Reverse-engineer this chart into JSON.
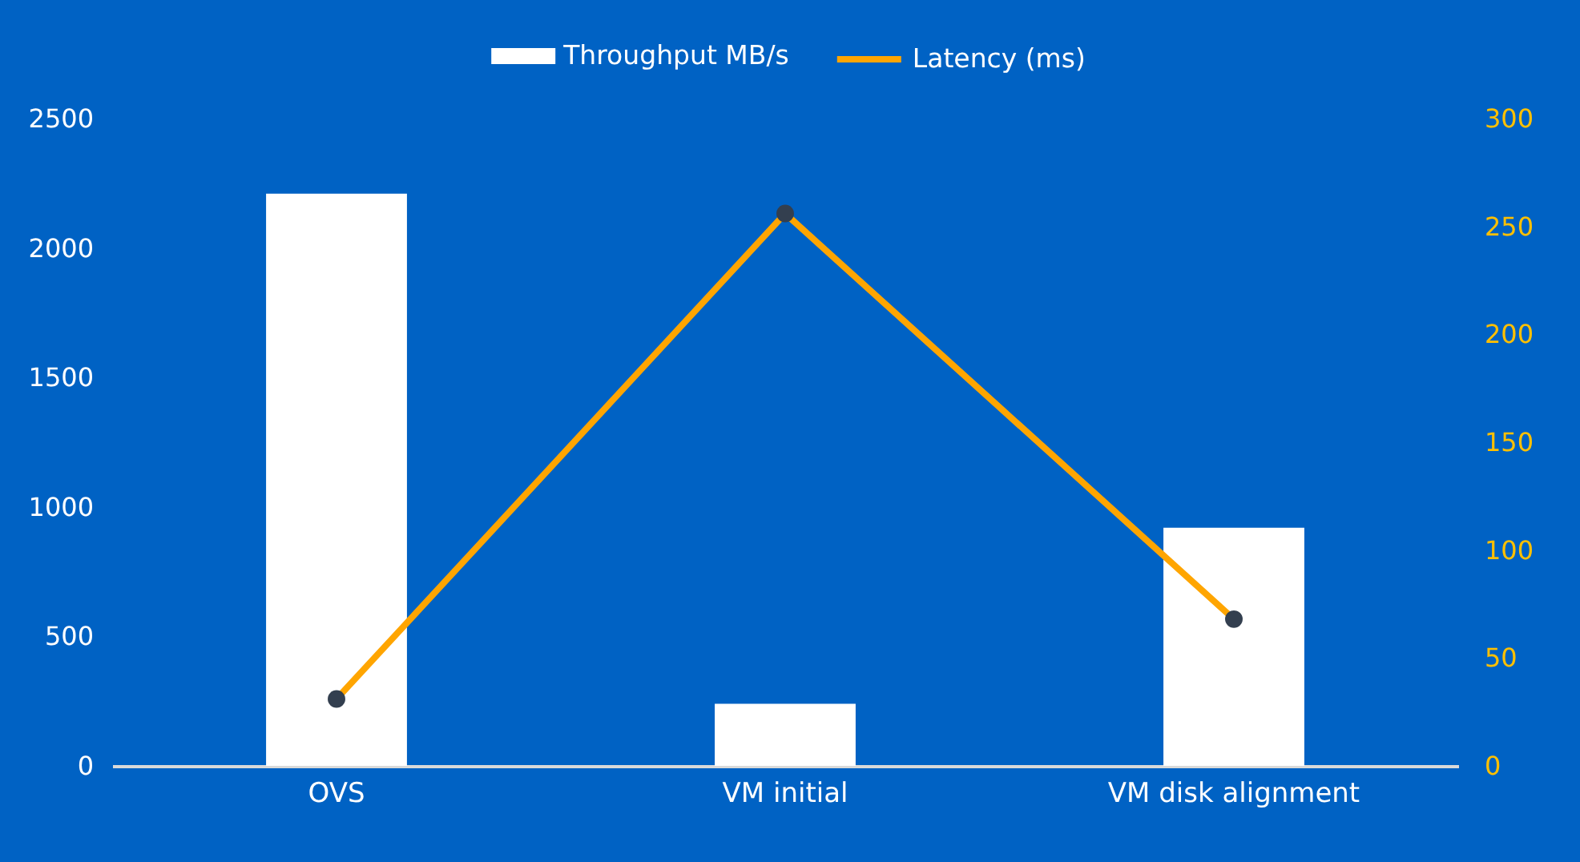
{
  "chart_data": {
    "type": "bar",
    "categories": [
      "OVS",
      "VM initial",
      "VM disk alignment"
    ],
    "series": [
      {
        "name": "Throughput MB/s",
        "color": "#ffffff",
        "values": [
          2210,
          240,
          920
        ]
      },
      {
        "name": "Latency (ms)",
        "type": "line",
        "axis": "y2",
        "color": "#ffa500",
        "values": [
          31,
          256,
          68
        ]
      }
    ],
    "ylim": [
      0,
      2500
    ],
    "yticks": [
      0,
      500,
      1000,
      1500,
      2000,
      2500
    ],
    "y2lim": [
      0,
      300
    ],
    "y2ticks": [
      0,
      50,
      100,
      150,
      200,
      250,
      300
    ],
    "legend": "top",
    "marker": "circle"
  }
}
